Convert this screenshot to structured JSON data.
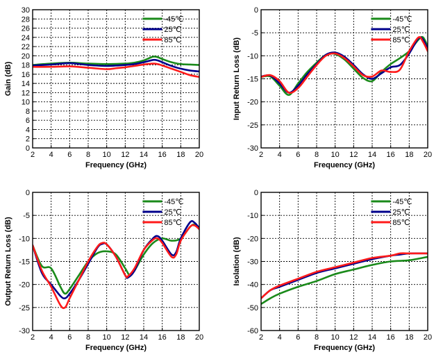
{
  "colors": {
    "-45C": "#1a8a1a",
    "25C": "#00008b",
    "85C": "#ff1a1a"
  },
  "chart_data": [
    {
      "type": "line",
      "xlabel": "Frequency  (GHz)",
      "ylabel": "Gain  (dB)",
      "xlim": [
        2,
        20
      ],
      "ylim": [
        0,
        30
      ],
      "xticks": [
        2,
        4,
        6,
        8,
        10,
        12,
        14,
        16,
        18,
        20
      ],
      "yticks": [
        0,
        2,
        4,
        6,
        8,
        10,
        12,
        14,
        16,
        18,
        20,
        22,
        24,
        26,
        28,
        30
      ],
      "grid": true,
      "legend_position": "top-right",
      "series": [
        {
          "name": "-45℃",
          "color_key": "-45C",
          "x": [
            2,
            4,
            6,
            8,
            10,
            12,
            13,
            14,
            15,
            15.5,
            16,
            17,
            18,
            19,
            20
          ],
          "y": [
            18.0,
            18.3,
            18.5,
            18.3,
            18.2,
            18.3,
            18.5,
            19.0,
            19.8,
            19.7,
            19.3,
            18.6,
            18.2,
            18.1,
            18.0
          ]
        },
        {
          "name": "25℃",
          "color_key": "25C",
          "x": [
            2,
            4,
            6,
            8,
            10,
            12,
            13,
            14,
            15,
            15.5,
            16,
            17,
            18,
            19,
            20
          ],
          "y": [
            17.9,
            18.1,
            18.4,
            18.0,
            17.8,
            18.0,
            18.2,
            18.6,
            19.1,
            19.0,
            18.6,
            17.8,
            17.2,
            16.8,
            16.6
          ]
        },
        {
          "name": "85℃",
          "color_key": "85C",
          "x": [
            2,
            4,
            6,
            8,
            10,
            11,
            12,
            13,
            14,
            15,
            15.5,
            16,
            17,
            18,
            19,
            20
          ],
          "y": [
            17.6,
            17.6,
            17.7,
            17.4,
            17.1,
            17.3,
            17.5,
            17.8,
            18.1,
            18.3,
            18.2,
            17.9,
            17.2,
            16.5,
            15.8,
            15.4
          ]
        }
      ]
    },
    {
      "type": "line",
      "xlabel": "Frequency  (GHz)",
      "ylabel": "Input Return Loss  (dB)",
      "xlim": [
        2,
        20
      ],
      "ylim": [
        -30,
        0
      ],
      "xticks": [
        2,
        4,
        6,
        8,
        10,
        12,
        14,
        16,
        18,
        20
      ],
      "yticks": [
        -30,
        -25,
        -20,
        -15,
        -10,
        -5,
        0
      ],
      "grid": true,
      "legend_position": "top-right",
      "series": [
        {
          "name": "-45℃",
          "color_key": "-45C",
          "x": [
            2,
            3,
            4,
            5,
            6,
            7,
            8,
            9,
            10,
            11,
            12,
            13,
            14,
            15,
            16,
            17,
            18,
            19,
            19.5,
            20
          ],
          "y": [
            -14.6,
            -14.5,
            -16.5,
            -18.5,
            -16.0,
            -13.5,
            -11.5,
            -9.8,
            -9.6,
            -10.8,
            -12.8,
            -14.8,
            -15.5,
            -13.5,
            -11.8,
            -10.5,
            -9.0,
            -6.5,
            -6.0,
            -8.0
          ]
        },
        {
          "name": "25℃",
          "color_key": "25C",
          "x": [
            2,
            3,
            4,
            5,
            6,
            7,
            8,
            9,
            10,
            11,
            12,
            13,
            14,
            15,
            16,
            17,
            18,
            19,
            19.5,
            20
          ],
          "y": [
            -14.5,
            -14.3,
            -16.0,
            -18.0,
            -16.5,
            -14.0,
            -11.8,
            -9.8,
            -9.3,
            -10.2,
            -12.0,
            -14.0,
            -15.0,
            -13.8,
            -12.5,
            -12.0,
            -9.5,
            -6.2,
            -6.5,
            -8.5
          ]
        },
        {
          "name": "85℃",
          "color_key": "85C",
          "x": [
            2,
            3,
            4,
            5,
            6,
            7,
            8,
            9,
            10,
            11,
            12,
            13,
            14,
            15,
            16,
            17,
            18,
            19,
            19.5,
            20
          ],
          "y": [
            -14.6,
            -14.2,
            -15.5,
            -18.0,
            -17.0,
            -14.5,
            -12.0,
            -10.0,
            -9.5,
            -10.5,
            -12.3,
            -14.2,
            -14.5,
            -13.2,
            -13.5,
            -13.0,
            -9.0,
            -6.0,
            -7.0,
            -9.0
          ]
        }
      ]
    },
    {
      "type": "line",
      "xlabel": "Frequency  (GHz)",
      "ylabel": "Output Return Loss  (dB)",
      "xlim": [
        2,
        20
      ],
      "ylim": [
        -30,
        0
      ],
      "xticks": [
        2,
        4,
        6,
        8,
        10,
        12,
        14,
        16,
        18,
        20
      ],
      "yticks": [
        -30,
        -25,
        -20,
        -15,
        -10,
        -5,
        0
      ],
      "grid": true,
      "legend_position": "top-right",
      "series": [
        {
          "name": "-45℃",
          "color_key": "-45C",
          "x": [
            2,
            3,
            4,
            5,
            5.5,
            6,
            7,
            8,
            9,
            10,
            11,
            12,
            12.5,
            13,
            14,
            15,
            16,
            17,
            18,
            19,
            19.5,
            20
          ],
          "y": [
            -11.5,
            -16.0,
            -16.5,
            -20.5,
            -22.0,
            -21.0,
            -18.0,
            -15.0,
            -13.2,
            -12.8,
            -13.5,
            -16.5,
            -18.0,
            -17.0,
            -13.5,
            -11.0,
            -10.0,
            -10.5,
            -10.0,
            -7.5,
            -7.0,
            -8.0
          ]
        },
        {
          "name": "25℃",
          "color_key": "25C",
          "x": [
            2,
            3,
            4,
            5,
            5.5,
            6,
            7,
            8,
            9,
            9.5,
            10,
            11,
            12,
            12.3,
            13,
            14,
            15,
            15.5,
            16,
            17,
            17.5,
            18,
            19,
            19.5,
            20
          ],
          "y": [
            -11.5,
            -17.5,
            -20.0,
            -22.5,
            -23.0,
            -22.0,
            -19.0,
            -15.5,
            -12.0,
            -11.2,
            -11.3,
            -14.0,
            -18.0,
            -18.5,
            -17.0,
            -12.5,
            -10.0,
            -9.5,
            -10.5,
            -13.5,
            -13.0,
            -10.0,
            -6.5,
            -6.6,
            -7.8
          ]
        },
        {
          "name": "85℃",
          "color_key": "85C",
          "x": [
            2,
            3,
            4,
            5,
            5.5,
            6,
            7,
            8,
            9,
            9.5,
            10,
            11,
            12,
            12.3,
            13,
            14,
            15,
            15.5,
            16,
            17,
            17.5,
            18,
            19,
            19.5,
            20
          ],
          "y": [
            -11.5,
            -17.0,
            -20.5,
            -24.5,
            -25.0,
            -23.0,
            -19.0,
            -15.0,
            -11.8,
            -11.0,
            -11.3,
            -14.0,
            -18.0,
            -18.2,
            -16.5,
            -12.5,
            -10.3,
            -10.0,
            -11.0,
            -14.0,
            -13.5,
            -10.5,
            -7.5,
            -7.2,
            -8.0
          ]
        }
      ]
    },
    {
      "type": "line",
      "xlabel": "Frequency  (GHz)",
      "ylabel": "Isolation  (dB)",
      "xlim": [
        2,
        20
      ],
      "ylim": [
        -60,
        0
      ],
      "xticks": [
        2,
        4,
        6,
        8,
        10,
        12,
        14,
        16,
        18,
        20
      ],
      "yticks": [
        -60,
        -50,
        -40,
        -30,
        -20,
        -10,
        0
      ],
      "grid": true,
      "legend_position": "top-right",
      "series": [
        {
          "name": "-45℃",
          "color_key": "-45C",
          "x": [
            2,
            3,
            4,
            6,
            8,
            10,
            12,
            14,
            16,
            18,
            20
          ],
          "y": [
            -48.5,
            -46.0,
            -44.0,
            -41.0,
            -38.5,
            -35.5,
            -33.5,
            -31.5,
            -30.0,
            -29.5,
            -28.0
          ]
        },
        {
          "name": "25℃",
          "color_key": "25C",
          "x": [
            2,
            3,
            4,
            6,
            8,
            10,
            12,
            14,
            16,
            17,
            18,
            20
          ],
          "y": [
            -46.0,
            -42.5,
            -41.0,
            -38.0,
            -35.0,
            -33.0,
            -31.0,
            -29.0,
            -27.5,
            -27.0,
            -26.5,
            -26.5
          ]
        },
        {
          "name": "85℃",
          "color_key": "85C",
          "x": [
            2,
            3,
            4,
            6,
            8,
            10,
            12,
            14,
            16,
            17,
            18,
            20
          ],
          "y": [
            -46.0,
            -42.5,
            -40.5,
            -37.5,
            -34.5,
            -32.5,
            -30.5,
            -28.5,
            -27.5,
            -26.5,
            -26.5,
            -26.5
          ]
        }
      ]
    }
  ]
}
